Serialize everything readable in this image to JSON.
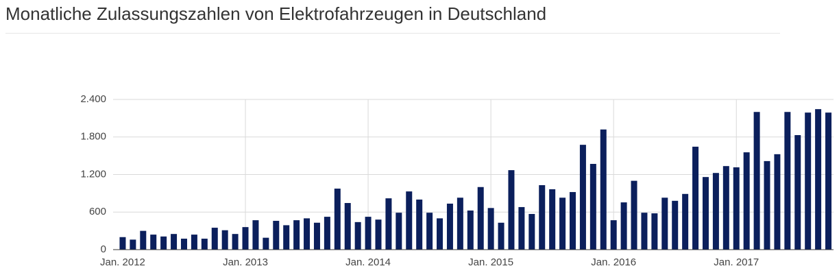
{
  "chart_data": {
    "type": "bar",
    "title": "Monatliche Zulassungszahlen von Elektrofahrzeugen in Deutschland",
    "categories": [
      "Jan. 2012",
      null,
      null,
      null,
      null,
      null,
      null,
      null,
      null,
      null,
      null,
      null,
      "Jan. 2013",
      null,
      null,
      null,
      null,
      null,
      null,
      null,
      null,
      null,
      null,
      null,
      "Jan. 2014",
      null,
      null,
      null,
      null,
      null,
      null,
      null,
      null,
      null,
      null,
      null,
      "Jan. 2015",
      null,
      null,
      null,
      null,
      null,
      null,
      null,
      null,
      null,
      null,
      null,
      "Jan. 2016",
      null,
      null,
      null,
      null,
      null,
      null,
      null,
      null,
      null,
      null,
      null,
      "Jan. 2017",
      null,
      null,
      null,
      null,
      null,
      null,
      null,
      null,
      null
    ],
    "values": [
      200,
      160,
      300,
      240,
      210,
      250,
      175,
      240,
      175,
      350,
      310,
      250,
      360,
      470,
      190,
      460,
      390,
      470,
      500,
      430,
      525,
      975,
      745,
      440,
      525,
      480,
      820,
      590,
      930,
      800,
      590,
      500,
      735,
      830,
      625,
      1000,
      665,
      430,
      1270,
      680,
      570,
      1030,
      965,
      830,
      920,
      1675,
      1370,
      1920,
      470,
      755,
      1100,
      590,
      580,
      830,
      780,
      890,
      1645,
      1160,
      1225,
      1335,
      1315,
      1555,
      2200,
      1415,
      1525,
      2200,
      1830,
      2190,
      2245,
      2190
    ],
    "color": "#0b1f5c",
    "ylim": [
      0,
      2400
    ],
    "yticks": [
      0,
      {
        "value": 600,
        "label": "600"
      },
      {
        "value": 1200,
        "label": "1.200"
      },
      {
        "value": 1800,
        "label": "1.800"
      },
      {
        "value": 2400,
        "label": "2.400"
      }
    ],
    "grid": true
  }
}
